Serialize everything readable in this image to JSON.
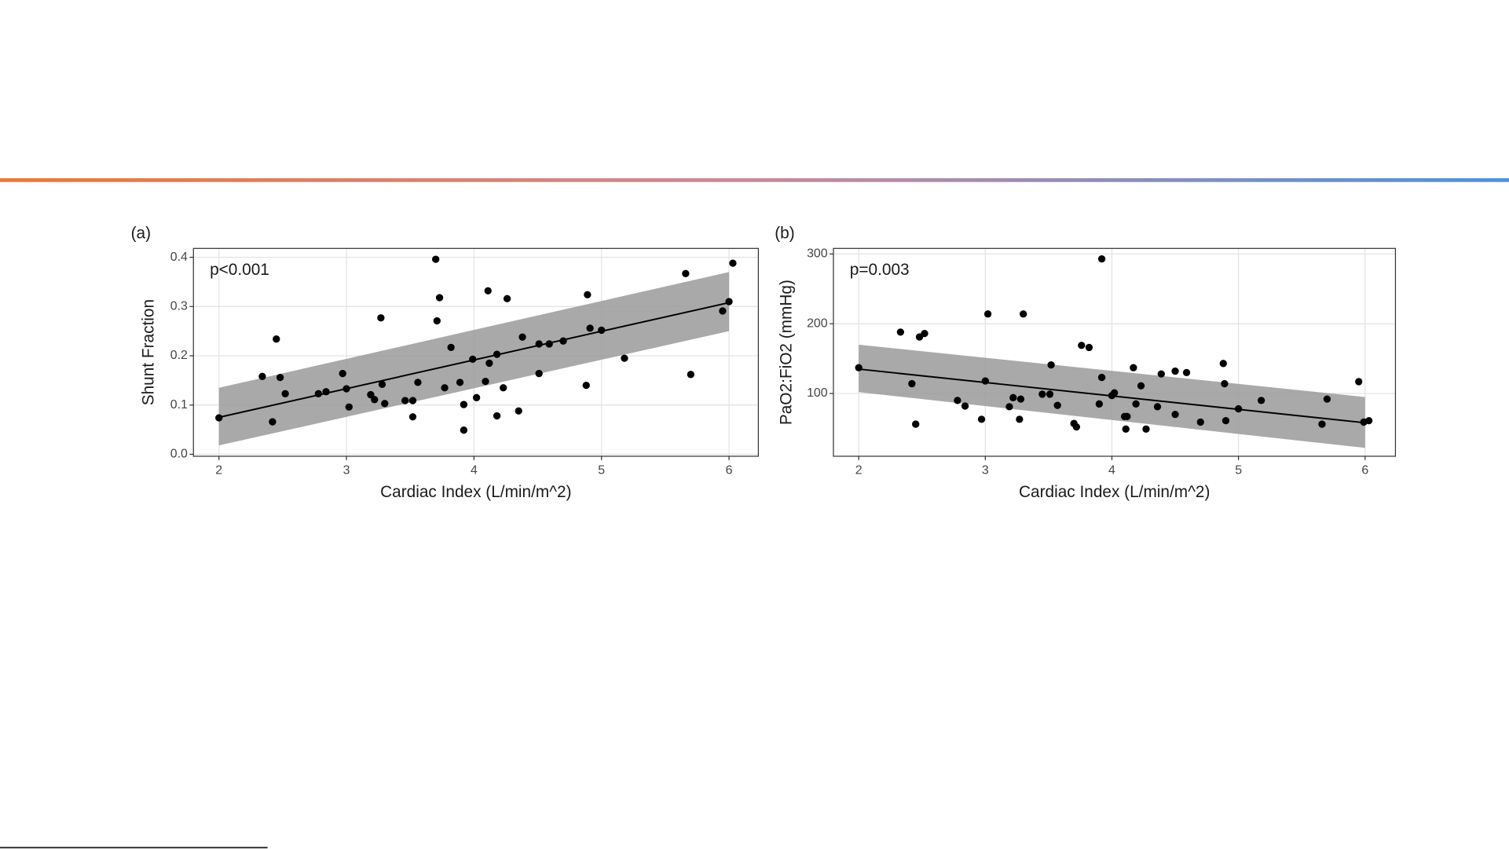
{
  "chart_data": [
    {
      "type": "scatter",
      "panel_label": "(a)",
      "annotation": "p<0.001",
      "xlabel": "Cardiac Index (L/min/m^2)",
      "ylabel": "Shunt Fraction",
      "xlim": [
        1.8,
        6.23
      ],
      "ylim": [
        -0.004,
        0.418
      ],
      "xticks": [
        2,
        3,
        4,
        5,
        6
      ],
      "yticks": [
        {
          "value": 0,
          "label": "0.0"
        },
        0.1,
        0.2,
        0.3,
        0.4
      ],
      "grid": true,
      "color": "#000000",
      "fit_color": "#000000",
      "band_color": "#9a9a9a",
      "x": [
        2.0,
        2.34,
        2.45,
        2.42,
        2.48,
        2.52,
        2.78,
        2.84,
        2.97,
        3.0,
        3.02,
        3.19,
        3.22,
        3.27,
        3.28,
        3.3,
        3.46,
        3.52,
        3.52,
        3.56,
        3.7,
        3.73,
        3.71,
        3.77,
        3.82,
        3.89,
        3.92,
        3.92,
        3.99,
        4.02,
        4.09,
        4.11,
        4.12,
        4.18,
        4.18,
        4.23,
        4.26,
        4.35,
        4.38,
        4.51,
        4.51,
        4.59,
        4.7,
        4.89,
        4.88,
        4.91,
        5.0,
        5.18,
        5.66,
        5.7,
        5.95,
        6.0,
        6.03
      ],
      "y": [
        0.074,
        0.158,
        0.234,
        0.066,
        0.156,
        0.123,
        0.123,
        0.127,
        0.164,
        0.133,
        0.096,
        0.121,
        0.111,
        0.277,
        0.142,
        0.103,
        0.109,
        0.109,
        0.076,
        0.146,
        0.396,
        0.318,
        0.271,
        0.135,
        0.217,
        0.146,
        0.101,
        0.049,
        0.193,
        0.115,
        0.148,
        0.332,
        0.185,
        0.203,
        0.078,
        0.135,
        0.316,
        0.088,
        0.238,
        0.224,
        0.164,
        0.224,
        0.23,
        0.324,
        0.14,
        0.256,
        0.252,
        0.195,
        0.367,
        0.162,
        0.291,
        0.31,
        0.388
      ],
      "fit": {
        "x": [
          2,
          6
        ],
        "y": [
          0.075,
          0.308
        ],
        "lower": [
          0.018,
          0.25
        ],
        "upper": [
          0.135,
          0.37
        ]
      }
    },
    {
      "type": "scatter",
      "panel_label": "(b)",
      "annotation": "p=0.003",
      "xlabel": "Cardiac Index (L/min/m^2)",
      "ylabel": "PaO2:FiO2 (mmHg)",
      "xlim": [
        1.8,
        6.24
      ],
      "ylim": [
        10,
        308
      ],
      "xticks": [
        2,
        3,
        4,
        5,
        6
      ],
      "yticks": [
        100,
        200,
        300
      ],
      "grid": true,
      "color": "#000000",
      "fit_color": "#000000",
      "band_color": "#9a9a9a",
      "x": [
        2.0,
        2.33,
        2.42,
        2.45,
        2.48,
        2.52,
        2.78,
        2.84,
        2.97,
        3.0,
        3.02,
        3.19,
        3.22,
        3.27,
        3.28,
        3.3,
        3.45,
        3.51,
        3.52,
        3.57,
        3.7,
        3.72,
        3.76,
        3.82,
        3.9,
        3.92,
        3.92,
        4.0,
        4.02,
        4.1,
        4.11,
        4.12,
        4.17,
        4.19,
        4.23,
        4.27,
        4.36,
        4.39,
        4.5,
        4.5,
        4.59,
        4.7,
        4.88,
        4.89,
        4.9,
        5.0,
        5.18,
        5.66,
        5.7,
        5.95,
        5.99,
        6.03
      ],
      "y": [
        137,
        188,
        114,
        56,
        181,
        186,
        90,
        82,
        63,
        118,
        214,
        81,
        94,
        63,
        92,
        214,
        99,
        99,
        141,
        83,
        57,
        52,
        169,
        166,
        85,
        293,
        123,
        97,
        101,
        67,
        49,
        67,
        137,
        85,
        111,
        49,
        81,
        128,
        132,
        70,
        130,
        59,
        143,
        114,
        61,
        78,
        90,
        56,
        92,
        117,
        59,
        61
      ],
      "fit": {
        "x": [
          2,
          6
        ],
        "y": [
          135,
          58
        ],
        "lower": [
          102,
          22
        ],
        "upper": [
          170,
          95
        ]
      }
    }
  ]
}
